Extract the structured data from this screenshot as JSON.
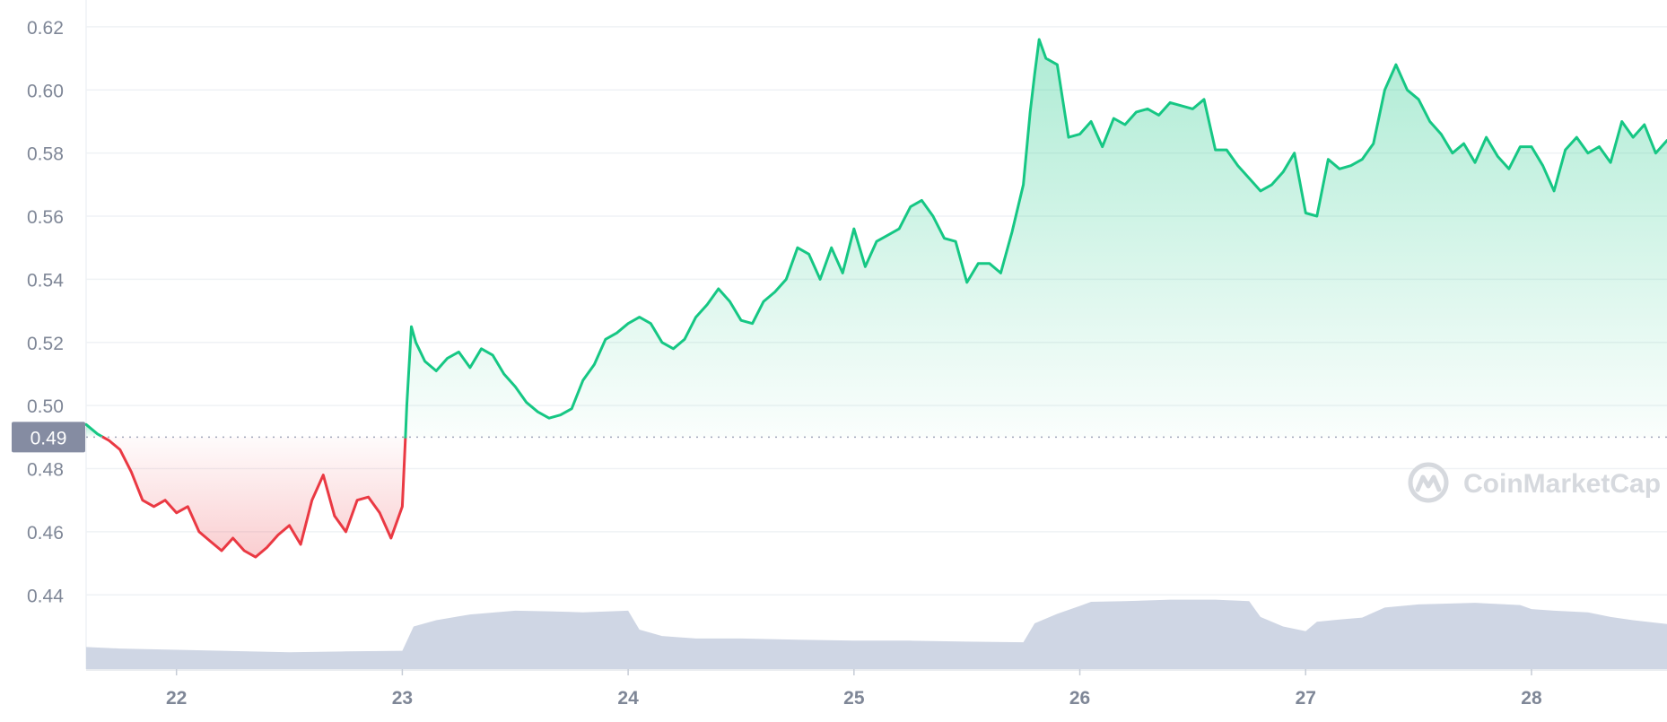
{
  "watermark": "CoinMarketCap",
  "chart_data": {
    "type": "area",
    "title": "",
    "xlabel": "",
    "ylabel": "",
    "baseline_value": 0.49,
    "baseline_label": "0.49",
    "y_ticks": [
      "0.62",
      "0.60",
      "0.58",
      "0.56",
      "0.54",
      "0.52",
      "0.50",
      "0.48",
      "0.46",
      "0.44"
    ],
    "y_tick_values": [
      0.62,
      0.6,
      0.58,
      0.56,
      0.54,
      0.52,
      0.5,
      0.48,
      0.46,
      0.44
    ],
    "ylim": [
      0.4165,
      0.6285
    ],
    "x_ticks": [
      "22",
      "23",
      "24",
      "25",
      "26",
      "27",
      "28"
    ],
    "x_tick_values": [
      22,
      23,
      24,
      25,
      26,
      27,
      28
    ],
    "xlim": [
      21.6,
      28.6
    ],
    "grid": true,
    "colors": {
      "up_line": "#16c784",
      "down_line": "#ea3943",
      "volume_fill": "#cfd6e4",
      "grid": "#eff2f5",
      "axis_text": "#7f8797",
      "badge": "#858ca2",
      "baseline_dots": "#a1a7bb"
    },
    "series": [
      {
        "type": "line",
        "x": [
          21.6,
          21.65,
          21.7,
          21.75,
          21.8,
          21.85,
          21.9,
          21.95,
          22.0,
          22.05,
          22.1,
          22.15,
          22.2,
          22.25,
          22.3,
          22.35,
          22.4,
          22.45,
          22.5,
          22.55,
          22.6,
          22.65,
          22.7,
          22.75,
          22.8,
          22.85,
          22.9,
          22.95,
          23.0,
          23.02,
          23.04,
          23.06,
          23.1,
          23.15,
          23.2,
          23.25,
          23.3,
          23.35,
          23.4,
          23.45,
          23.5,
          23.55,
          23.6,
          23.65,
          23.7,
          23.75,
          23.8,
          23.85,
          23.9,
          23.95,
          24.0,
          24.05,
          24.1,
          24.15,
          24.2,
          24.25,
          24.3,
          24.35,
          24.4,
          24.45,
          24.5,
          24.55,
          24.6,
          24.65,
          24.7,
          24.75,
          24.8,
          24.85,
          24.9,
          24.95,
          25.0,
          25.05,
          25.1,
          25.15,
          25.2,
          25.25,
          25.3,
          25.35,
          25.4,
          25.45,
          25.5,
          25.55,
          25.6,
          25.65,
          25.7,
          25.75,
          25.78,
          25.8,
          25.82,
          25.85,
          25.9,
          25.95,
          26.0,
          26.05,
          26.1,
          26.15,
          26.2,
          26.25,
          26.3,
          26.35,
          26.4,
          26.45,
          26.5,
          26.55,
          26.6,
          26.65,
          26.7,
          26.75,
          26.8,
          26.85,
          26.9,
          26.95,
          27.0,
          27.05,
          27.1,
          27.15,
          27.2,
          27.25,
          27.3,
          27.35,
          27.4,
          27.45,
          27.5,
          27.55,
          27.6,
          27.65,
          27.7,
          27.75,
          27.8,
          27.85,
          27.9,
          27.95,
          28.0,
          28.05,
          28.1,
          28.15,
          28.2,
          28.25,
          28.3,
          28.35,
          28.4,
          28.45,
          28.5,
          28.55,
          28.6
        ],
        "y": [
          0.494,
          0.491,
          0.489,
          0.486,
          0.479,
          0.47,
          0.468,
          0.47,
          0.466,
          0.468,
          0.46,
          0.457,
          0.454,
          0.458,
          0.454,
          0.452,
          0.455,
          0.459,
          0.462,
          0.456,
          0.47,
          0.478,
          0.465,
          0.46,
          0.47,
          0.471,
          0.466,
          0.458,
          0.468,
          0.5,
          0.525,
          0.52,
          0.514,
          0.511,
          0.515,
          0.517,
          0.512,
          0.518,
          0.516,
          0.51,
          0.506,
          0.501,
          0.498,
          0.496,
          0.497,
          0.499,
          0.508,
          0.513,
          0.521,
          0.523,
          0.526,
          0.528,
          0.526,
          0.52,
          0.518,
          0.521,
          0.528,
          0.532,
          0.537,
          0.533,
          0.527,
          0.526,
          0.533,
          0.536,
          0.54,
          0.55,
          0.548,
          0.54,
          0.55,
          0.542,
          0.556,
          0.544,
          0.552,
          0.554,
          0.556,
          0.563,
          0.565,
          0.56,
          0.553,
          0.552,
          0.539,
          0.545,
          0.545,
          0.542,
          0.555,
          0.57,
          0.593,
          0.605,
          0.616,
          0.61,
          0.608,
          0.585,
          0.586,
          0.59,
          0.582,
          0.591,
          0.589,
          0.593,
          0.594,
          0.592,
          0.596,
          0.595,
          0.594,
          0.597,
          0.581,
          0.581,
          0.576,
          0.572,
          0.568,
          0.57,
          0.574,
          0.58,
          0.561,
          0.56,
          0.578,
          0.575,
          0.576,
          0.578,
          0.583,
          0.6,
          0.608,
          0.6,
          0.597,
          0.59,
          0.586,
          0.58,
          0.583,
          0.577,
          0.585,
          0.579,
          0.575,
          0.582,
          0.582,
          0.576,
          0.568,
          0.581,
          0.585,
          0.58,
          0.582,
          0.577,
          0.59,
          0.585,
          0.589,
          0.58,
          0.584
        ]
      },
      {
        "type": "volume_area",
        "x": [
          21.6,
          21.75,
          22.0,
          22.25,
          22.5,
          22.75,
          23.0,
          23.05,
          23.15,
          23.3,
          23.5,
          23.65,
          23.8,
          24.0,
          24.05,
          24.15,
          24.3,
          24.5,
          24.75,
          25.0,
          25.25,
          25.5,
          25.75,
          25.8,
          25.9,
          26.0,
          26.05,
          26.2,
          26.4,
          26.6,
          26.75,
          26.8,
          26.9,
          27.0,
          27.05,
          27.15,
          27.25,
          27.35,
          27.5,
          27.75,
          27.95,
          28.0,
          28.1,
          28.25,
          28.35,
          28.45,
          28.6
        ]
      }
    ]
  }
}
